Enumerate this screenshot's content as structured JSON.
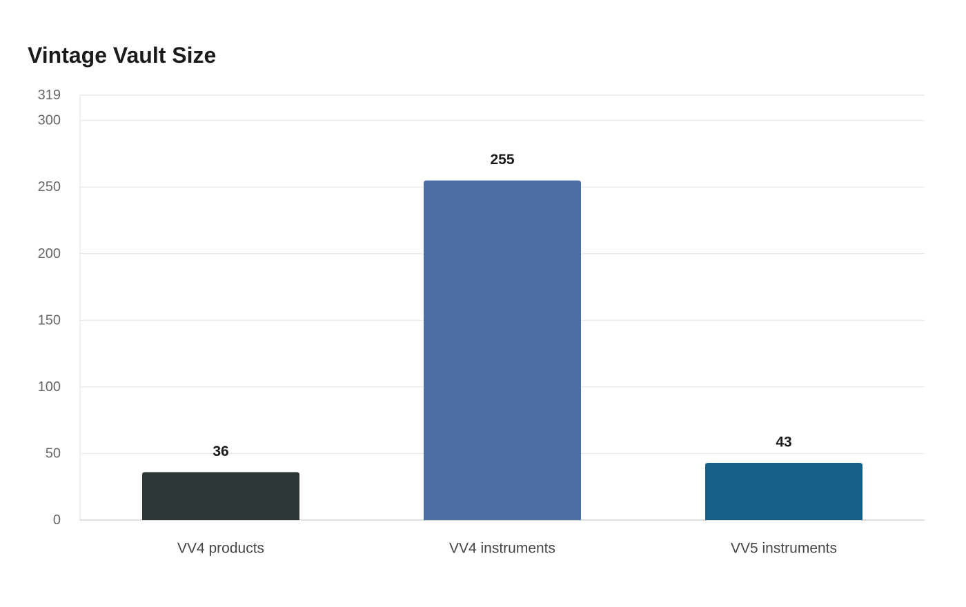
{
  "chart_data": {
    "type": "bar",
    "title": "Vintage Vault Size",
    "categories": [
      "VV4 products",
      "VV4 instruments",
      "VV5 instruments"
    ],
    "values": [
      36,
      255,
      43
    ],
    "colors": [
      "#2e3537",
      "#4a6ea1",
      "#176087"
    ],
    "y_ticks": [
      0,
      50,
      100,
      150,
      200,
      250,
      300,
      319
    ],
    "ylim": [
      0,
      319
    ],
    "xlabel": "",
    "ylabel": "",
    "grid": true,
    "legend": "none",
    "data_labels": true
  }
}
